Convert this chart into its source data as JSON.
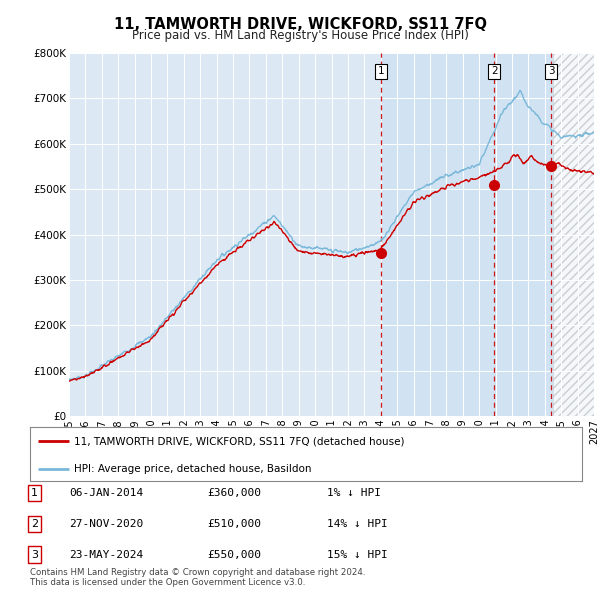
{
  "title": "11, TAMWORTH DRIVE, WICKFORD, SS11 7FQ",
  "subtitle": "Price paid vs. HM Land Registry's House Price Index (HPI)",
  "legend_line1": "11, TAMWORTH DRIVE, WICKFORD, SS11 7FQ (detached house)",
  "legend_line2": "HPI: Average price, detached house, Basildon",
  "table_rows": [
    {
      "num": "1",
      "date": "06-JAN-2014",
      "price": "£360,000",
      "hpi": "1% ↓ HPI"
    },
    {
      "num": "2",
      "date": "27-NOV-2020",
      "price": "£510,000",
      "hpi": "14% ↓ HPI"
    },
    {
      "num": "3",
      "date": "23-MAY-2024",
      "price": "£550,000",
      "hpi": "15% ↓ HPI"
    }
  ],
  "footer": "Contains HM Land Registry data © Crown copyright and database right 2024.\nThis data is licensed under the Open Government Licence v3.0.",
  "sale_dates": [
    2014.04,
    2020.92,
    2024.4
  ],
  "sale_prices": [
    360000,
    510000,
    550000
  ],
  "sale_labels": [
    "1",
    "2",
    "3"
  ],
  "hpi_color": "#7ab8d9",
  "price_paid_color": "#cc0000",
  "vline_color": "#cc0000",
  "background_color": "#dce9f5",
  "highlight_color": "#cddff0",
  "ylim": [
    0,
    800000
  ],
  "xlim_min": 1995.0,
  "xlim_max": 2027.0,
  "ytick_vals": [
    0,
    100000,
    200000,
    300000,
    400000,
    500000,
    600000,
    700000,
    800000
  ],
  "ytick_labels": [
    "£0",
    "£100K",
    "£200K",
    "£300K",
    "£400K",
    "£500K",
    "£600K",
    "£700K",
    "£800K"
  ],
  "xticks": [
    1995,
    1996,
    1997,
    1998,
    1999,
    2000,
    2001,
    2002,
    2003,
    2004,
    2005,
    2006,
    2007,
    2008,
    2009,
    2010,
    2011,
    2012,
    2013,
    2014,
    2015,
    2016,
    2017,
    2018,
    2019,
    2020,
    2021,
    2022,
    2023,
    2024,
    2025,
    2026,
    2027
  ],
  "hatch_start": 2024.5,
  "highlight_start": 2014.04
}
